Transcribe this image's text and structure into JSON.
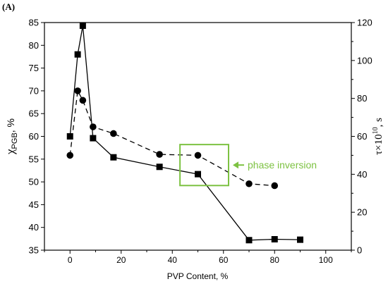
{
  "panel_label": "(A)",
  "colors": {
    "axis": "#000000",
    "annotation": "#7dc242"
  },
  "chart_data": {
    "type": "line",
    "xlabel": "PVP Content, %",
    "ylabel_left": {
      "base": "χ",
      "sub": "PGB",
      "suffix": ", %"
    },
    "ylabel_right": {
      "base": "τ×10",
      "sup": "10",
      "suffix": ", s"
    },
    "xlim": [
      -10,
      110
    ],
    "ylim_left": [
      35,
      85
    ],
    "ylim_right": [
      0,
      120
    ],
    "x_ticks": [
      0,
      20,
      40,
      60,
      80,
      100
    ],
    "y_ticks_left": [
      35,
      40,
      45,
      50,
      55,
      60,
      65,
      70,
      75,
      80,
      85
    ],
    "y_ticks_right": [
      0,
      20,
      40,
      60,
      80,
      100,
      120
    ],
    "grid": false,
    "series": [
      {
        "axis": "left",
        "marker": "square",
        "line": "solid",
        "points": [
          [
            0,
            60
          ],
          [
            3,
            78
          ],
          [
            5,
            84.3
          ],
          [
            9,
            59.6
          ],
          [
            17,
            55.4
          ],
          [
            35,
            53.3
          ],
          [
            50,
            51.7
          ],
          [
            70,
            37.2
          ],
          [
            80,
            37.4
          ],
          [
            90,
            37.3
          ]
        ]
      },
      {
        "axis": "right",
        "marker": "circle",
        "line": "dashed",
        "points": [
          [
            0,
            50
          ],
          [
            3,
            84
          ],
          [
            5,
            79
          ],
          [
            9,
            65
          ],
          [
            17,
            61.5
          ],
          [
            35,
            50.5
          ],
          [
            50,
            50
          ],
          [
            70,
            35
          ],
          [
            80,
            34
          ]
        ]
      }
    ],
    "annotation": {
      "text": "phase inversion",
      "box_x": [
        43,
        62
      ],
      "box_y_left": [
        49.2,
        58.2
      ]
    }
  }
}
